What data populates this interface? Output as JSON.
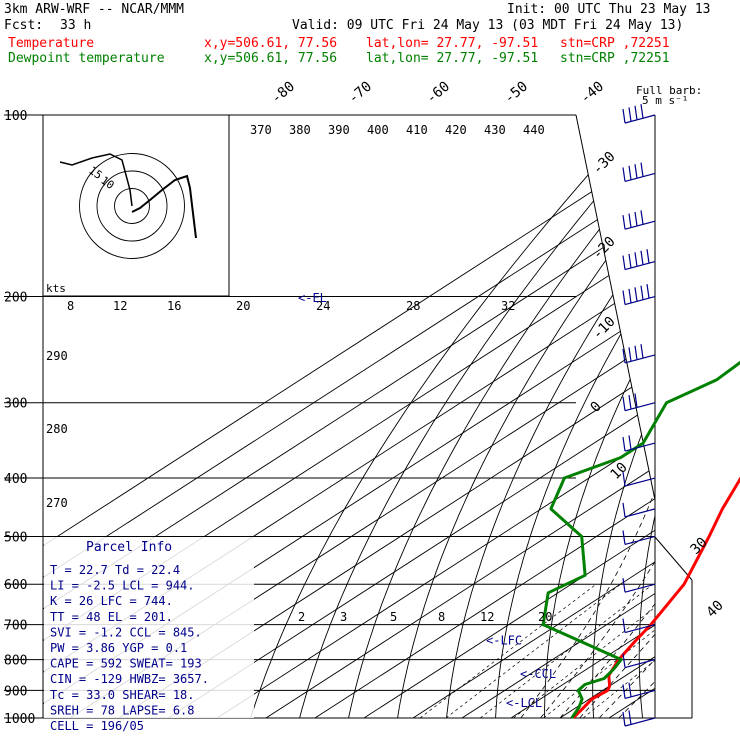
{
  "header": {
    "model": "3km ARW-WRF -- NCAR/MMM",
    "init": "Init: 00 UTC Thu 23 May 13",
    "fcst_label": "Fcst:",
    "fcst_value": "33 h",
    "valid": "Valid: 09 UTC Fri 24 May 13 (03 MDT Fri 24 May 13)",
    "temp_label": "Temperature",
    "dew_label": "Dewpoint temperature",
    "xy": "x,y=506.61, 77.56",
    "latlon": "lat,lon= 27.77, -97.51",
    "stn": "stn=CRP ,72251"
  },
  "barb_title": "Full barb:",
  "barb_unit": "5 m s⁻¹",
  "hodo_unit": "kts",
  "hodo_labels": [
    "15",
    "10"
  ],
  "el_marker": "<-EL",
  "lfc_marker": "<-LFC",
  "ccl_marker": "<-CCL",
  "lcl_marker": "<-LCL",
  "parcel": {
    "title": "Parcel Info",
    "rows": [
      "T  =    22.7  Td =  22.4",
      "LI =    -2.5  LCL =  944.",
      "K  =     26  LFC =  744.",
      "TT =     48  EL  =  201.",
      "SVI =   -1.2  CCL =  845.",
      "PW =   3.86  YGP =   0.1",
      "CAPE =   592  SWEAT=  193",
      "CIN =   -129  HWBZ= 3657.",
      "Tc =   33.0  SHEAR=   18.",
      "SREH =    78  LAPSE=  6.8",
      "CELL = 196/05"
    ]
  },
  "chart_data": {
    "type": "line",
    "title": "",
    "ylabel": "",
    "xlabel": "",
    "pressure_levels": [
      100,
      200,
      300,
      400,
      500,
      600,
      700,
      800,
      900,
      1000
    ],
    "isotherm_labels_top": [
      "-80",
      "-70",
      "-60",
      "-50",
      "-40"
    ],
    "isotherm_labels_right": [
      "-30",
      "-20",
      "-10",
      "0",
      "10",
      "30",
      "40"
    ],
    "theta_labels": [
      "370",
      "380",
      "390",
      "400",
      "410",
      "420",
      "430",
      "440"
    ],
    "theta_labels_left": [
      "290",
      "280",
      "270"
    ],
    "mixing_ratio_labels": [
      "2",
      "3",
      "5",
      "8",
      "12",
      "20"
    ],
    "upper_scale_labels": [
      "8",
      "12",
      "16",
      "20",
      "24",
      "28",
      "32"
    ],
    "series": [
      {
        "name": "Temperature",
        "color": "#ff0000",
        "points": [
          [
            100,
            -77
          ],
          [
            120,
            -71.7
          ],
          [
            150,
            -62
          ],
          [
            175,
            -57.5
          ],
          [
            200,
            -53
          ],
          [
            250,
            -42
          ],
          [
            300,
            -33
          ],
          [
            400,
            -19
          ],
          [
            450,
            -13
          ],
          [
            500,
            -7
          ],
          [
            600,
            3
          ],
          [
            700,
            9
          ],
          [
            745,
            11
          ],
          [
            800,
            13.5
          ],
          [
            850,
            16.5
          ],
          [
            885,
            20
          ],
          [
            900,
            21
          ],
          [
            930,
            20.5
          ],
          [
            960,
            21.5
          ],
          [
            1000,
            22.7
          ]
        ]
      },
      {
        "name": "Dewpoint temperature",
        "color": "#008000",
        "points": [
          [
            100,
            -86
          ],
          [
            130,
            -81
          ],
          [
            150,
            -82
          ],
          [
            175,
            -75
          ],
          [
            200,
            -69
          ],
          [
            250,
            -56
          ],
          [
            275,
            -55
          ],
          [
            300,
            -58
          ],
          [
            350,
            -50
          ],
          [
            370,
            -50
          ],
          [
            400,
            -55
          ],
          [
            450,
            -48
          ],
          [
            500,
            -33
          ],
          [
            580,
            -20
          ],
          [
            620,
            -22
          ],
          [
            700,
            -13
          ],
          [
            750,
            1
          ],
          [
            800,
            14
          ],
          [
            830,
            15.5
          ],
          [
            860,
            16.5
          ],
          [
            880,
            14.5
          ],
          [
            900,
            15
          ],
          [
            930,
            18.5
          ],
          [
            960,
            20.5
          ],
          [
            1000,
            22.4
          ]
        ]
      }
    ],
    "hodograph_rings": [
      5,
      10,
      15
    ],
    "wind_barbs_kt": [
      {
        "p": 100,
        "spd": 35
      },
      {
        "p": 125,
        "spd": 40
      },
      {
        "p": 150,
        "spd": 40
      },
      {
        "p": 175,
        "spd": 45
      },
      {
        "p": 200,
        "spd": 45
      },
      {
        "p": 250,
        "spd": 40
      },
      {
        "p": 300,
        "spd": 30
      },
      {
        "p": 350,
        "spd": 20
      },
      {
        "p": 400,
        "spd": 10
      },
      {
        "p": 450,
        "spd": 10
      },
      {
        "p": 500,
        "spd": 5
      },
      {
        "p": 600,
        "spd": 5
      },
      {
        "p": 700,
        "spd": 5
      },
      {
        "p": 800,
        "spd": 10
      },
      {
        "p": 900,
        "spd": 15
      },
      {
        "p": 1000,
        "spd": 20
      }
    ]
  }
}
